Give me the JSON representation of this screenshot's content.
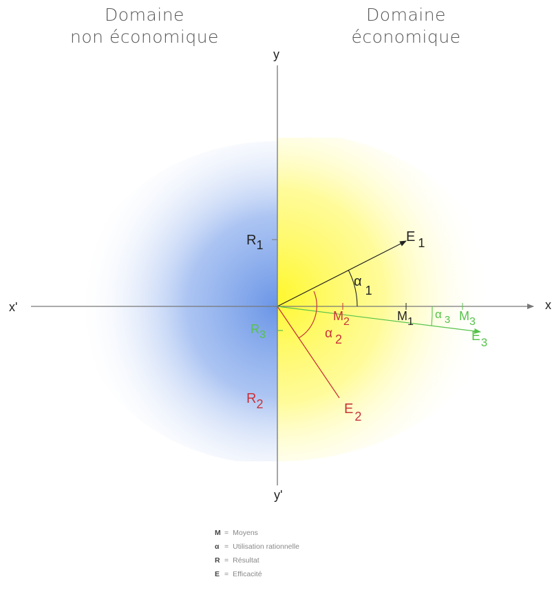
{
  "header": {
    "left": {
      "line1": "Domaine",
      "line2": "non économique"
    },
    "right": {
      "line1": "Domaine",
      "line2": "économique"
    }
  },
  "axes": {
    "x_pos": "x",
    "x_neg": "x'",
    "y_pos": "y",
    "y_neg": "y'"
  },
  "labels": {
    "R1": {
      "main": "R",
      "sub": "1"
    },
    "E1": {
      "main": "E",
      "sub": "1"
    },
    "alpha1": {
      "main": "α",
      "sub": "1"
    },
    "M1": {
      "main": "M",
      "sub": "1"
    },
    "M2": {
      "main": "M",
      "sub": "2"
    },
    "R3": {
      "main": "R",
      "sub": "3"
    },
    "alpha2": {
      "main": "α",
      "sub": "2"
    },
    "alpha3": {
      "main": "α",
      "sub": "3"
    },
    "M3": {
      "main": "M",
      "sub": "3"
    },
    "E3": {
      "main": "E",
      "sub": "3"
    },
    "R2": {
      "main": "R",
      "sub": "2"
    },
    "E2": {
      "main": "E",
      "sub": "2"
    }
  },
  "legend": [
    {
      "symbol": "M",
      "text": "Moyens"
    },
    {
      "symbol": "α",
      "text": "Utilisation rationnelle"
    },
    {
      "symbol": "R",
      "text": "Résultat"
    },
    {
      "symbol": "E",
      "text": "Efficacité"
    }
  ],
  "colors": {
    "black_series": "#222222",
    "red_series": "#c8323a",
    "green_series": "#55c24a",
    "left_glow": "#6a95e6",
    "right_glow": "#fff830",
    "axis": "#777777"
  }
}
